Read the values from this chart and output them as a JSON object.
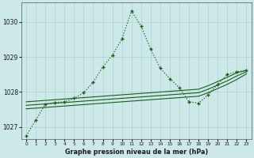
{
  "title": "Graphe pression niveau de la mer (hPa)",
  "background_color": "#cde8e8",
  "grid_color": "#afd0d0",
  "line_color": "#1a5c1a",
  "x_hours": [
    0,
    1,
    2,
    3,
    4,
    5,
    6,
    7,
    8,
    9,
    10,
    11,
    12,
    13,
    14,
    15,
    16,
    17,
    18,
    19,
    20,
    21,
    22,
    23
  ],
  "main_line": [
    1026.75,
    1027.2,
    1027.65,
    1027.7,
    1027.72,
    1027.82,
    1027.98,
    1028.28,
    1028.72,
    1029.05,
    1029.52,
    1030.32,
    1029.88,
    1029.22,
    1028.68,
    1028.38,
    1028.12,
    1027.72,
    1027.68,
    1027.92,
    1028.22,
    1028.5,
    1028.58,
    1028.62
  ],
  "smooth_line1": [
    1027.72,
    1027.74,
    1027.76,
    1027.78,
    1027.8,
    1027.82,
    1027.84,
    1027.86,
    1027.88,
    1027.9,
    1027.92,
    1027.94,
    1027.96,
    1027.98,
    1028.0,
    1028.02,
    1028.04,
    1028.06,
    1028.08,
    1028.18,
    1028.3,
    1028.42,
    1028.55,
    1028.62
  ],
  "smooth_line2": [
    1027.62,
    1027.64,
    1027.66,
    1027.68,
    1027.7,
    1027.72,
    1027.74,
    1027.76,
    1027.78,
    1027.8,
    1027.82,
    1027.84,
    1027.86,
    1027.88,
    1027.9,
    1027.92,
    1027.94,
    1027.96,
    1027.98,
    1028.08,
    1028.2,
    1028.32,
    1028.46,
    1028.58
  ],
  "smooth_line3": [
    1027.52,
    1027.54,
    1027.56,
    1027.58,
    1027.6,
    1027.62,
    1027.64,
    1027.66,
    1027.68,
    1027.7,
    1027.72,
    1027.74,
    1027.76,
    1027.78,
    1027.8,
    1027.82,
    1027.84,
    1027.86,
    1027.88,
    1027.98,
    1028.1,
    1028.22,
    1028.36,
    1028.52
  ],
  "ylim": [
    1026.65,
    1030.55
  ],
  "yticks": [
    1027,
    1028,
    1029,
    1030
  ],
  "xlim": [
    -0.5,
    23.5
  ],
  "xticks": [
    0,
    1,
    2,
    3,
    4,
    5,
    6,
    7,
    8,
    9,
    10,
    11,
    12,
    13,
    14,
    15,
    16,
    17,
    18,
    19,
    20,
    21,
    22,
    23
  ]
}
